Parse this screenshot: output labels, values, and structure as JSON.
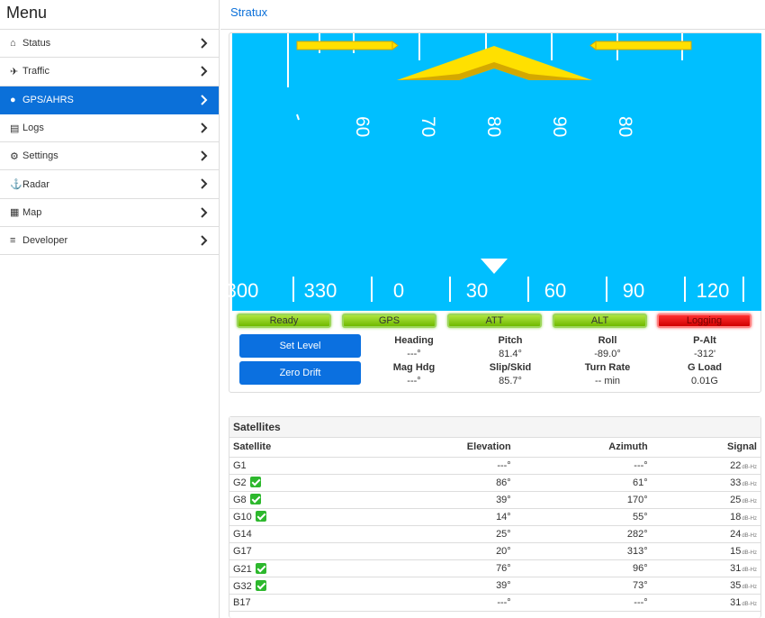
{
  "menu": {
    "title": "Menu",
    "items": [
      {
        "label": "Status",
        "icon": "home-icon"
      },
      {
        "label": "Traffic",
        "icon": "plane-icon"
      },
      {
        "label": "GPS/AHRS",
        "icon": "globe-icon"
      },
      {
        "label": "Logs",
        "icon": "file-icon"
      },
      {
        "label": "Settings",
        "icon": "gear-icon"
      },
      {
        "label": "Radar",
        "icon": "radar-icon"
      },
      {
        "label": "Map",
        "icon": "map-icon"
      },
      {
        "label": "Developer",
        "icon": "list-icon"
      }
    ],
    "active_index": 2
  },
  "header": {
    "title": "Stratux"
  },
  "hud": {
    "pitch_labels": [
      "60",
      "70",
      "80",
      "90",
      "80"
    ],
    "heading_labels": [
      "300",
      "330",
      "0",
      "30",
      "60",
      "90",
      "120"
    ],
    "colors": {
      "sky": "#00bfff",
      "wing": "#ffe000",
      "wing_dark": "#d4a800"
    }
  },
  "status": {
    "ready": "Ready",
    "gps": "GPS",
    "att": "ATT",
    "alt": "ALT",
    "logging": "Logging"
  },
  "buttons": {
    "set_level": "Set Level",
    "zero_drift": "Zero Drift"
  },
  "metrics": {
    "heading": {
      "label": "Heading",
      "value": "---°"
    },
    "pitch": {
      "label": "Pitch",
      "value": "81.4°"
    },
    "roll": {
      "label": "Roll",
      "value": "-89.0°"
    },
    "palt": {
      "label": "P-Alt",
      "value": "-312'"
    },
    "mag_hdg": {
      "label": "Mag Hdg",
      "value": "---°"
    },
    "slip": {
      "label": "Slip/Skid",
      "value": "85.7°"
    },
    "turn_rate": {
      "label": "Turn Rate",
      "value": "-- min"
    },
    "gload": {
      "label": "G Load",
      "value": "0.01G"
    }
  },
  "satellites": {
    "title": "Satellites",
    "columns": [
      "Satellite",
      "Elevation",
      "Azimuth",
      "Signal"
    ],
    "signal_unit": "dB-Hz",
    "rows": [
      {
        "id": "G1",
        "in_solution": false,
        "elevation": "---°",
        "azimuth": "---°",
        "signal": "22"
      },
      {
        "id": "G2",
        "in_solution": true,
        "elevation": "86°",
        "azimuth": "61°",
        "signal": "33"
      },
      {
        "id": "G8",
        "in_solution": true,
        "elevation": "39°",
        "azimuth": "170°",
        "signal": "25"
      },
      {
        "id": "G10",
        "in_solution": true,
        "elevation": "14°",
        "azimuth": "55°",
        "signal": "18"
      },
      {
        "id": "G14",
        "in_solution": false,
        "elevation": "25°",
        "azimuth": "282°",
        "signal": "24"
      },
      {
        "id": "G17",
        "in_solution": false,
        "elevation": "20°",
        "azimuth": "313°",
        "signal": "15"
      },
      {
        "id": "G21",
        "in_solution": true,
        "elevation": "76°",
        "azimuth": "96°",
        "signal": "31"
      },
      {
        "id": "G32",
        "in_solution": true,
        "elevation": "39°",
        "azimuth": "73°",
        "signal": "35"
      },
      {
        "id": "B17",
        "in_solution": false,
        "elevation": "---°",
        "azimuth": "---°",
        "signal": "31"
      }
    ]
  }
}
